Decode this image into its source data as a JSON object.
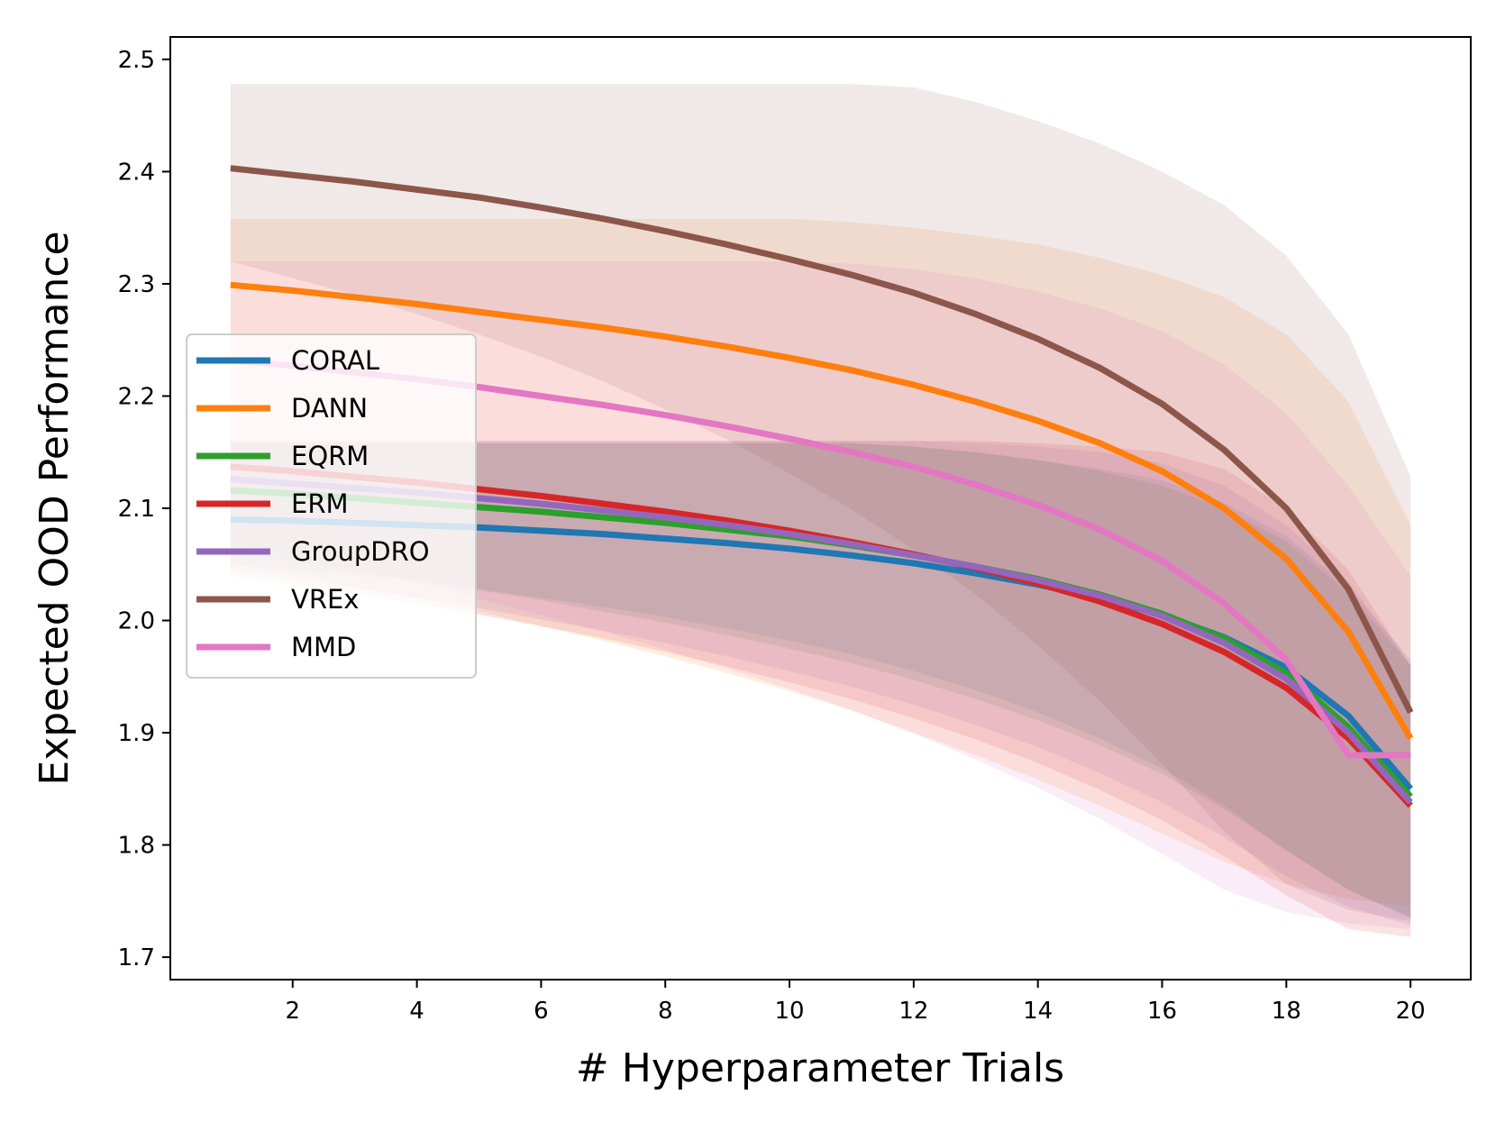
{
  "chart_data": {
    "type": "line",
    "title": "",
    "xlabel": "# Hyperparameter Trials",
    "ylabel": "Expected OOD Performance",
    "xlim": [
      0.03,
      20.97
    ],
    "ylim": [
      1.68,
      2.52
    ],
    "xticks": [
      2,
      4,
      6,
      8,
      10,
      12,
      14,
      16,
      18,
      20
    ],
    "yticks": [
      1.7,
      1.8,
      1.9,
      2.0,
      2.1,
      2.2,
      2.3,
      2.4,
      2.5
    ],
    "xtick_labels": [
      "2",
      "4",
      "6",
      "8",
      "10",
      "12",
      "14",
      "16",
      "18",
      "20"
    ],
    "ytick_labels": [
      "1.7",
      "1.8",
      "1.9",
      "2.0",
      "2.1",
      "2.2",
      "2.3",
      "2.4",
      "2.5"
    ],
    "grid": false,
    "legend_position": "center-left",
    "x": [
      1,
      2,
      3,
      4,
      5,
      6,
      7,
      8,
      9,
      10,
      11,
      12,
      13,
      14,
      15,
      16,
      17,
      18,
      19,
      20
    ],
    "series": [
      {
        "name": "CORAL",
        "color": "#1f77b4",
        "values": [
          2.09,
          2.089,
          2.087,
          2.085,
          2.083,
          2.08,
          2.077,
          2.073,
          2.069,
          2.064,
          2.058,
          2.051,
          2.042,
          2.032,
          2.02,
          2.005,
          1.985,
          1.958,
          1.915,
          1.85
        ],
        "lower": [
          2.05,
          2.045,
          2.04,
          2.035,
          2.028,
          2.02,
          2.012,
          2.003,
          1.993,
          1.982,
          1.97,
          1.955,
          1.938,
          1.918,
          1.895,
          1.868,
          1.835,
          1.795,
          1.76,
          1.735
        ],
        "upper": [
          2.158,
          2.158,
          2.158,
          2.158,
          2.158,
          2.158,
          2.158,
          2.158,
          2.158,
          2.158,
          2.158,
          2.155,
          2.15,
          2.143,
          2.135,
          2.125,
          2.105,
          2.075,
          2.03,
          1.965
        ]
      },
      {
        "name": "DANN",
        "color": "#ff7f0e",
        "values": [
          2.299,
          2.294,
          2.288,
          2.282,
          2.275,
          2.268,
          2.261,
          2.253,
          2.244,
          2.234,
          2.223,
          2.21,
          2.195,
          2.178,
          2.158,
          2.133,
          2.1,
          2.055,
          1.99,
          1.895
        ],
        "lower": [
          2.05,
          2.04,
          2.03,
          2.02,
          2.008,
          1.995,
          1.982,
          1.968,
          1.953,
          1.937,
          1.92,
          1.9,
          1.88,
          1.858,
          1.835,
          1.81,
          1.785,
          1.765,
          1.752,
          1.745
        ],
        "upper": [
          2.358,
          2.358,
          2.358,
          2.358,
          2.358,
          2.358,
          2.358,
          2.358,
          2.358,
          2.358,
          2.355,
          2.35,
          2.343,
          2.335,
          2.323,
          2.308,
          2.288,
          2.255,
          2.195,
          2.085
        ]
      },
      {
        "name": "EQRM",
        "color": "#2ca02c",
        "values": [
          2.116,
          2.113,
          2.109,
          2.105,
          2.101,
          2.097,
          2.092,
          2.087,
          2.081,
          2.075,
          2.067,
          2.058,
          2.048,
          2.037,
          2.023,
          2.006,
          1.984,
          1.953,
          1.905,
          1.843
        ],
        "lower": [
          2.06,
          2.052,
          2.044,
          2.036,
          2.027,
          2.018,
          2.008,
          1.998,
          1.987,
          1.975,
          1.962,
          1.947,
          1.93,
          1.911,
          1.889,
          1.863,
          1.832,
          1.795,
          1.76,
          1.735
        ],
        "upper": [
          2.158,
          2.158,
          2.158,
          2.158,
          2.158,
          2.158,
          2.158,
          2.158,
          2.158,
          2.158,
          2.158,
          2.155,
          2.15,
          2.143,
          2.133,
          2.12,
          2.1,
          2.07,
          2.025,
          1.96
        ]
      },
      {
        "name": "ERM",
        "color": "#d62728",
        "values": [
          2.137,
          2.133,
          2.128,
          2.123,
          2.117,
          2.111,
          2.104,
          2.097,
          2.089,
          2.08,
          2.07,
          2.059,
          2.047,
          2.033,
          2.017,
          1.997,
          1.972,
          1.94,
          1.895,
          1.835
        ],
        "lower": [
          2.04,
          2.032,
          2.024,
          2.015,
          2.005,
          1.995,
          1.984,
          1.972,
          1.959,
          1.945,
          1.93,
          1.913,
          1.894,
          1.873,
          1.849,
          1.822,
          1.79,
          1.755,
          1.725,
          1.718
        ],
        "upper": [
          2.16,
          2.16,
          2.16,
          2.16,
          2.16,
          2.16,
          2.16,
          2.16,
          2.16,
          2.16,
          2.16,
          2.16,
          2.16,
          2.158,
          2.155,
          2.15,
          2.135,
          2.1,
          2.045,
          1.96
        ]
      },
      {
        "name": "GroupDRO",
        "color": "#9467bd",
        "values": [
          2.126,
          2.122,
          2.118,
          2.114,
          2.109,
          2.104,
          2.098,
          2.092,
          2.085,
          2.077,
          2.068,
          2.058,
          2.048,
          2.036,
          2.022,
          2.004,
          1.98,
          1.948,
          1.9,
          1.838
        ],
        "lower": [
          2.045,
          2.037,
          2.029,
          2.02,
          2.011,
          2.001,
          1.991,
          1.98,
          1.968,
          1.955,
          1.941,
          1.925,
          1.907,
          1.887,
          1.864,
          1.838,
          1.807,
          1.772,
          1.745,
          1.728
        ],
        "upper": [
          2.16,
          2.16,
          2.16,
          2.16,
          2.16,
          2.16,
          2.16,
          2.16,
          2.16,
          2.16,
          2.16,
          2.16,
          2.158,
          2.155,
          2.15,
          2.14,
          2.12,
          2.085,
          2.035,
          1.96
        ]
      },
      {
        "name": "VREx",
        "color": "#8c564b",
        "values": [
          2.403,
          2.397,
          2.391,
          2.384,
          2.377,
          2.368,
          2.358,
          2.347,
          2.335,
          2.322,
          2.308,
          2.292,
          2.273,
          2.251,
          2.225,
          2.193,
          2.152,
          2.1,
          2.028,
          1.918
        ],
        "lower": [
          2.32,
          2.305,
          2.29,
          2.273,
          2.255,
          2.235,
          2.213,
          2.188,
          2.161,
          2.131,
          2.099,
          2.063,
          2.023,
          1.978,
          1.928,
          1.872,
          1.812,
          1.765,
          1.742,
          1.732
        ],
        "upper": [
          2.478,
          2.478,
          2.478,
          2.478,
          2.478,
          2.478,
          2.478,
          2.478,
          2.478,
          2.478,
          2.478,
          2.475,
          2.462,
          2.445,
          2.425,
          2.4,
          2.37,
          2.325,
          2.255,
          2.128
        ]
      },
      {
        "name": "MMD",
        "color": "#e377c2",
        "values": [
          2.232,
          2.227,
          2.221,
          2.215,
          2.208,
          2.2,
          2.192,
          2.183,
          2.173,
          2.162,
          2.15,
          2.137,
          2.121,
          2.103,
          2.081,
          2.053,
          2.015,
          1.965,
          1.88,
          1.88
        ],
        "lower": [
          2.07,
          2.058,
          2.046,
          2.033,
          2.019,
          2.005,
          1.99,
          1.974,
          1.957,
          1.939,
          1.92,
          1.899,
          1.876,
          1.851,
          1.823,
          1.792,
          1.76,
          1.74,
          1.73,
          1.725
        ],
        "upper": [
          2.32,
          2.32,
          2.32,
          2.32,
          2.32,
          2.32,
          2.32,
          2.32,
          2.32,
          2.32,
          2.318,
          2.313,
          2.305,
          2.293,
          2.278,
          2.258,
          2.228,
          2.185,
          2.12,
          2.04
        ]
      }
    ]
  }
}
